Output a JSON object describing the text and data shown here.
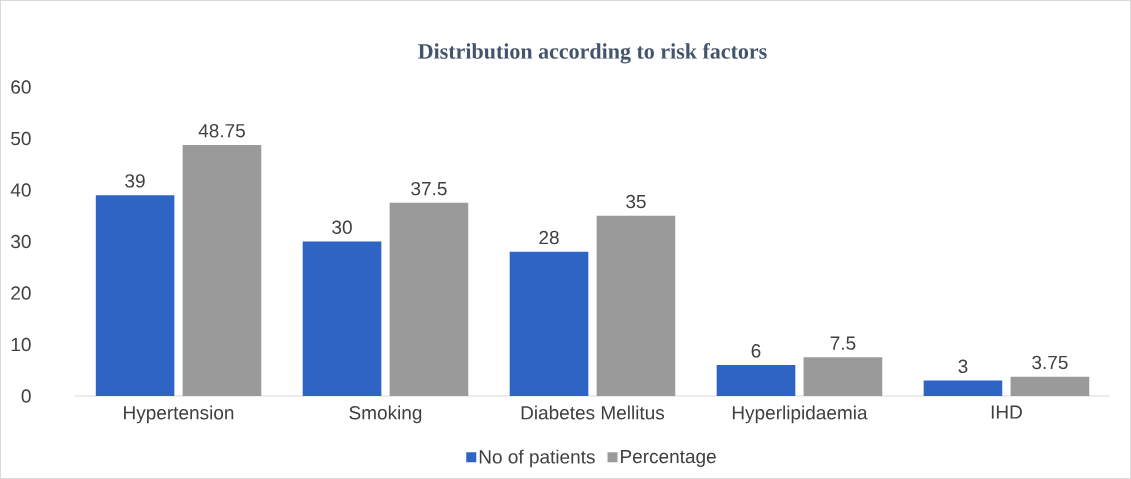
{
  "chart_data": {
    "type": "bar",
    "title": "Distribution according to risk factors",
    "categories": [
      "Hypertension",
      "Smoking",
      "Diabetes Mellitus",
      "Hyperlipidaemia",
      "IHD"
    ],
    "series": [
      {
        "name": "No of patients",
        "color": "#2e64c4",
        "values": [
          39,
          30,
          28,
          6,
          3
        ]
      },
      {
        "name": "Percentage",
        "color": "#9a9a9a",
        "values": [
          48.75,
          37.5,
          35,
          7.5,
          3.75
        ]
      }
    ],
    "ylim": [
      0,
      60
    ],
    "yticks": [
      0,
      10,
      20,
      30,
      40,
      50,
      60
    ],
    "grid": false,
    "legend": "bottom",
    "data_labels": true
  }
}
